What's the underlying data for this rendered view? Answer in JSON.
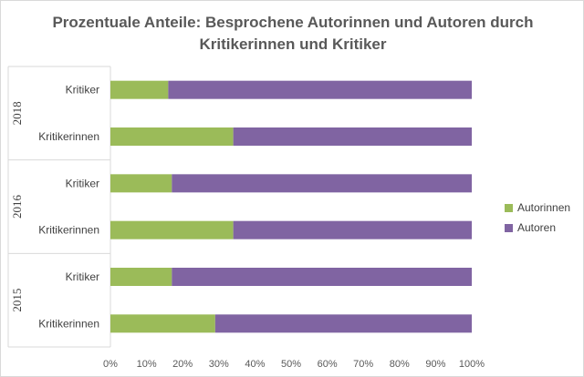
{
  "chart_data": {
    "type": "bar",
    "orientation": "horizontal",
    "stacked": "percent",
    "title": "Prozentuale Anteile: Besprochene Autorinnen und Autoren durch Kritikerinnen und Kritiker",
    "groups": [
      {
        "label": "2018",
        "categories": [
          "Kritiker",
          "Kritikerinnen"
        ]
      },
      {
        "label": "2016",
        "categories": [
          "Kritiker",
          "Kritikerinnen"
        ]
      },
      {
        "label": "2015",
        "categories": [
          "Kritiker",
          "Kritikerinnen"
        ]
      }
    ],
    "series": [
      {
        "name": "Autorinnen",
        "color": "#9bbb59",
        "values": [
          16,
          34,
          17,
          34,
          17,
          29
        ]
      },
      {
        "name": "Autoren",
        "color": "#8064a2",
        "values": [
          84,
          66,
          83,
          66,
          83,
          71
        ]
      }
    ],
    "xlim": [
      0,
      100
    ],
    "xticks": [
      "0%",
      "10%",
      "20%",
      "30%",
      "40%",
      "50%",
      "60%",
      "70%",
      "80%",
      "90%",
      "100%"
    ],
    "grid": false,
    "legend_position": "right"
  }
}
